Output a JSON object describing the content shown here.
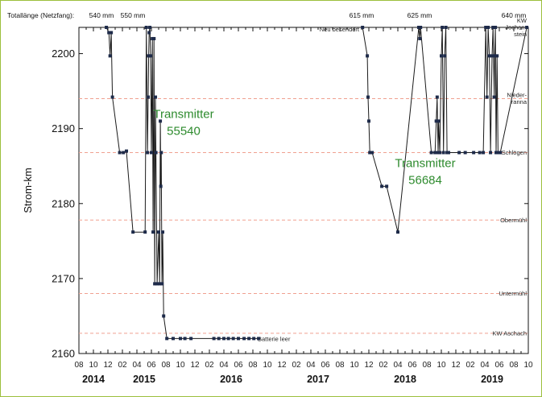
{
  "chart_data": {
    "type": "line",
    "top_label": "Totallänge (Netzfang):",
    "top_lengths": [
      {
        "x": "2014-12",
        "text": "540 mm"
      },
      {
        "x": "2015-05",
        "text": "550 mm"
      },
      {
        "x": "2017-11",
        "text": "615 mm"
      },
      {
        "x": "2018-07",
        "text": "625 mm"
      },
      {
        "x": "2019-08",
        "text": "640 mm"
      }
    ],
    "ylabel": "Strom-km",
    "ylim": [
      2160,
      2203.5
    ],
    "yticks": [
      2160,
      2170,
      2180,
      2190,
      2200
    ],
    "xrange": [
      "2014-08",
      "2019-10"
    ],
    "xtick_labels": [
      "08",
      "10",
      "12",
      "02",
      "04",
      "06",
      "08",
      "10",
      "12",
      "02",
      "04",
      "06",
      "08",
      "10",
      "12",
      "02",
      "04",
      "06",
      "08",
      "10",
      "12",
      "02",
      "04",
      "06",
      "08",
      "10",
      "12",
      "02",
      "04",
      "06",
      "08",
      "10"
    ],
    "years": [
      {
        "x": "2014-10",
        "label": "2014"
      },
      {
        "x": "2015-05",
        "label": "2015"
      },
      {
        "x": "2016-05",
        "label": "2016"
      },
      {
        "x": "2017-05",
        "label": "2017"
      },
      {
        "x": "2018-05",
        "label": "2018"
      },
      {
        "x": "2019-05",
        "label": "2019"
      }
    ],
    "reference_lines": [
      {
        "y": 2203.5,
        "label": "KW Jochen-stein"
      },
      {
        "y": 2194,
        "label": "Nieder-ranna"
      },
      {
        "y": 2186.8,
        "label": "Schlögen"
      },
      {
        "y": 2177.8,
        "label": "Obermühl"
      },
      {
        "y": 2168.0,
        "label": "Untermühl"
      },
      {
        "y": 2162.7,
        "label": "KW Aschach"
      }
    ],
    "annotations": [
      {
        "x": "2017-11",
        "y": 2203.5,
        "text": "Neu besendert"
      },
      {
        "x": "2016-08",
        "y": 2162,
        "text": "Batterie leer"
      }
    ],
    "series": [
      {
        "name": "Transmitter 55540",
        "label_position": {
          "x": "2015-06",
          "y": "2191"
        },
        "points": [
          [
            "2014-11-25",
            2203.5
          ],
          [
            "2014-12-05",
            2202.8
          ],
          [
            "2014-12-10",
            2199.7
          ],
          [
            "2014-12-15",
            2202.8
          ],
          [
            "2014-12-20",
            2194.2
          ],
          [
            "2015-01-20",
            2186.8
          ],
          [
            "2015-02-05",
            2186.8
          ],
          [
            "2015-02-18",
            2187.0
          ],
          [
            "2015-03-15",
            2176.2
          ],
          [
            "2015-05-05",
            2176.2
          ],
          [
            "2015-05-10",
            2203.5
          ],
          [
            "2015-05-15",
            2186.8
          ],
          [
            "2015-05-18",
            2194.2
          ],
          [
            "2015-05-20",
            2199.7
          ],
          [
            "2015-05-22",
            2202.8
          ],
          [
            "2015-05-25",
            2203.5
          ],
          [
            "2015-05-28",
            2199.7
          ],
          [
            "2015-06-01",
            2186.8
          ],
          [
            "2015-06-05",
            2202.0
          ],
          [
            "2015-06-08",
            2176.2
          ],
          [
            "2015-06-12",
            2202.0
          ],
          [
            "2015-06-15",
            2169.3
          ],
          [
            "2015-06-18",
            2194.2
          ],
          [
            "2015-06-20",
            2186.8
          ],
          [
            "2015-06-25",
            2169.3
          ],
          [
            "2015-07-01",
            2176.2
          ],
          [
            "2015-07-05",
            2169.3
          ],
          [
            "2015-07-08",
            2191.0
          ],
          [
            "2015-07-10",
            2182.3
          ],
          [
            "2015-07-12",
            2186.8
          ],
          [
            "2015-07-15",
            2169.3
          ],
          [
            "2015-07-18",
            2176.2
          ],
          [
            "2015-07-22",
            2165.0
          ],
          [
            "2015-08-05",
            2162.0
          ],
          [
            "2015-09-01",
            2162.0
          ],
          [
            "2015-10-01",
            2162.0
          ],
          [
            "2015-10-20",
            2162.0
          ],
          [
            "2015-11-15",
            2162.0
          ],
          [
            "2016-02-20",
            2162.0
          ],
          [
            "2016-03-10",
            2162.0
          ],
          [
            "2016-04-01",
            2162.0
          ],
          [
            "2016-04-20",
            2162.0
          ],
          [
            "2016-05-10",
            2162.0
          ],
          [
            "2016-06-01",
            2162.0
          ],
          [
            "2016-06-25",
            2162.0
          ],
          [
            "2016-07-15",
            2162.0
          ],
          [
            "2016-08-05",
            2162.0
          ],
          [
            "2016-08-25",
            2162.0
          ]
        ]
      },
      {
        "name": "Transmitter 56684",
        "label_position": {
          "x": "2018-06",
          "y": "2184"
        },
        "points": [
          [
            "2017-11-05",
            2203.5
          ],
          [
            "2017-11-25",
            2199.7
          ],
          [
            "2017-11-28",
            2194.2
          ],
          [
            "2017-12-01",
            2191.0
          ],
          [
            "2017-12-05",
            2186.8
          ],
          [
            "2017-12-15",
            2186.8
          ],
          [
            "2018-01-25",
            2182.3
          ],
          [
            "2018-02-15",
            2182.3
          ],
          [
            "2018-04-01",
            2176.2
          ],
          [
            "2018-06-28",
            2203.5
          ],
          [
            "2018-07-02",
            2202.0
          ],
          [
            "2018-07-05",
            2203.5
          ],
          [
            "2018-08-20",
            2186.8
          ],
          [
            "2018-09-05",
            2186.8
          ],
          [
            "2018-09-10",
            2191.0
          ],
          [
            "2018-09-14",
            2194.2
          ],
          [
            "2018-09-18",
            2186.8
          ],
          [
            "2018-09-20",
            2191.0
          ],
          [
            "2018-09-25",
            2186.8
          ],
          [
            "2018-10-01",
            2199.7
          ],
          [
            "2018-10-05",
            2203.5
          ],
          [
            "2018-10-10",
            2186.8
          ],
          [
            "2018-10-15",
            2199.7
          ],
          [
            "2018-10-20",
            2203.5
          ],
          [
            "2018-10-25",
            2186.8
          ],
          [
            "2018-11-01",
            2186.8
          ],
          [
            "2018-12-15",
            2186.8
          ],
          [
            "2019-01-10",
            2186.8
          ],
          [
            "2019-02-15",
            2186.8
          ],
          [
            "2019-03-10",
            2186.8
          ],
          [
            "2019-03-25",
            2186.8
          ],
          [
            "2019-04-05",
            2203.5
          ],
          [
            "2019-04-10",
            2194.2
          ],
          [
            "2019-04-15",
            2203.5
          ],
          [
            "2019-04-20",
            2199.7
          ],
          [
            "2019-04-25",
            2186.8
          ],
          [
            "2019-05-01",
            2199.7
          ],
          [
            "2019-05-05",
            2203.5
          ],
          [
            "2019-05-10",
            2194.2
          ],
          [
            "2019-05-12",
            2199.7
          ],
          [
            "2019-05-15",
            2203.5
          ],
          [
            "2019-05-18",
            2186.8
          ],
          [
            "2019-05-22",
            2199.7
          ],
          [
            "2019-05-26",
            2186.8
          ],
          [
            "2019-06-05",
            2186.8
          ],
          [
            "2019-09-25",
            2203.5
          ]
        ]
      }
    ]
  }
}
